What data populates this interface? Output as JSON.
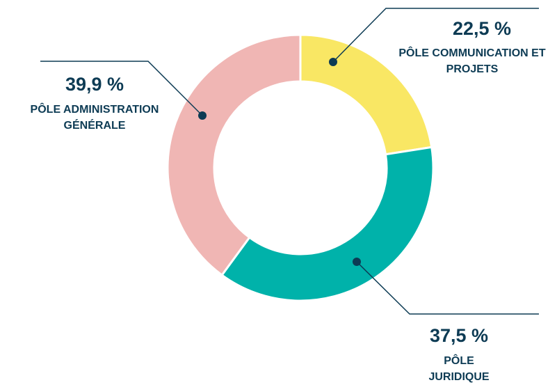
{
  "chart_data": {
    "type": "pie",
    "categories": [
      "PÔLE COMMUNICATION ET PROJETS",
      "PÔLE JURIDIQUE",
      "PÔLE ADMINISTRATION GÉNÉRALE"
    ],
    "values": [
      22.5,
      37.5,
      39.9
    ],
    "value_labels": [
      "22,5 %",
      "37,5 %",
      "39,9 %"
    ],
    "colors": [
      "#f9e764",
      "#00b2aa",
      "#f0b6b4"
    ]
  }
}
